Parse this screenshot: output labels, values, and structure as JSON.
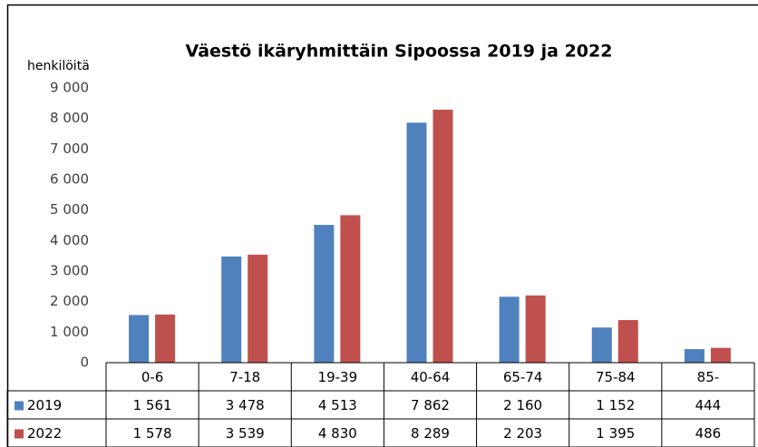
{
  "chart_data": {
    "type": "bar",
    "title": "Väestö ikäryhmittäin Sipoossa 2019 ja 2022",
    "y_label": "henkilöitä",
    "categories": [
      "0-6",
      "7-18",
      "19-39",
      "40-64",
      "65-74",
      "75-84",
      "85-"
    ],
    "series": [
      {
        "name": "2019",
        "color": "#4f81bd",
        "values": [
          1561,
          3478,
          4513,
          7862,
          2160,
          1152,
          444
        ],
        "value_labels": [
          "1 561",
          "3 478",
          "4 513",
          "7 862",
          "2 160",
          "1 152",
          "444"
        ]
      },
      {
        "name": "2022",
        "color": "#c0504d",
        "values": [
          1578,
          3539,
          4830,
          8289,
          2203,
          1395,
          486
        ],
        "value_labels": [
          "1 578",
          "3 539",
          "4 830",
          "8 289",
          "2 203",
          "1 395",
          "486"
        ]
      }
    ],
    "ylim": [
      0,
      9000
    ],
    "yticks": [
      0,
      {
        "value": 1000,
        "label": "1 000"
      },
      {
        "value": 2000,
        "label": "2 000"
      },
      {
        "value": 3000,
        "label": "3 000"
      },
      {
        "value": 4000,
        "label": "4 000"
      },
      {
        "value": 5000,
        "label": "5 000"
      },
      {
        "value": 6000,
        "label": "6 000"
      },
      {
        "value": 7000,
        "label": "7 000"
      },
      {
        "value": 8000,
        "label": "8 000"
      },
      {
        "value": 9000,
        "label": "9 000"
      }
    ],
    "grid": false,
    "legend": "table"
  }
}
